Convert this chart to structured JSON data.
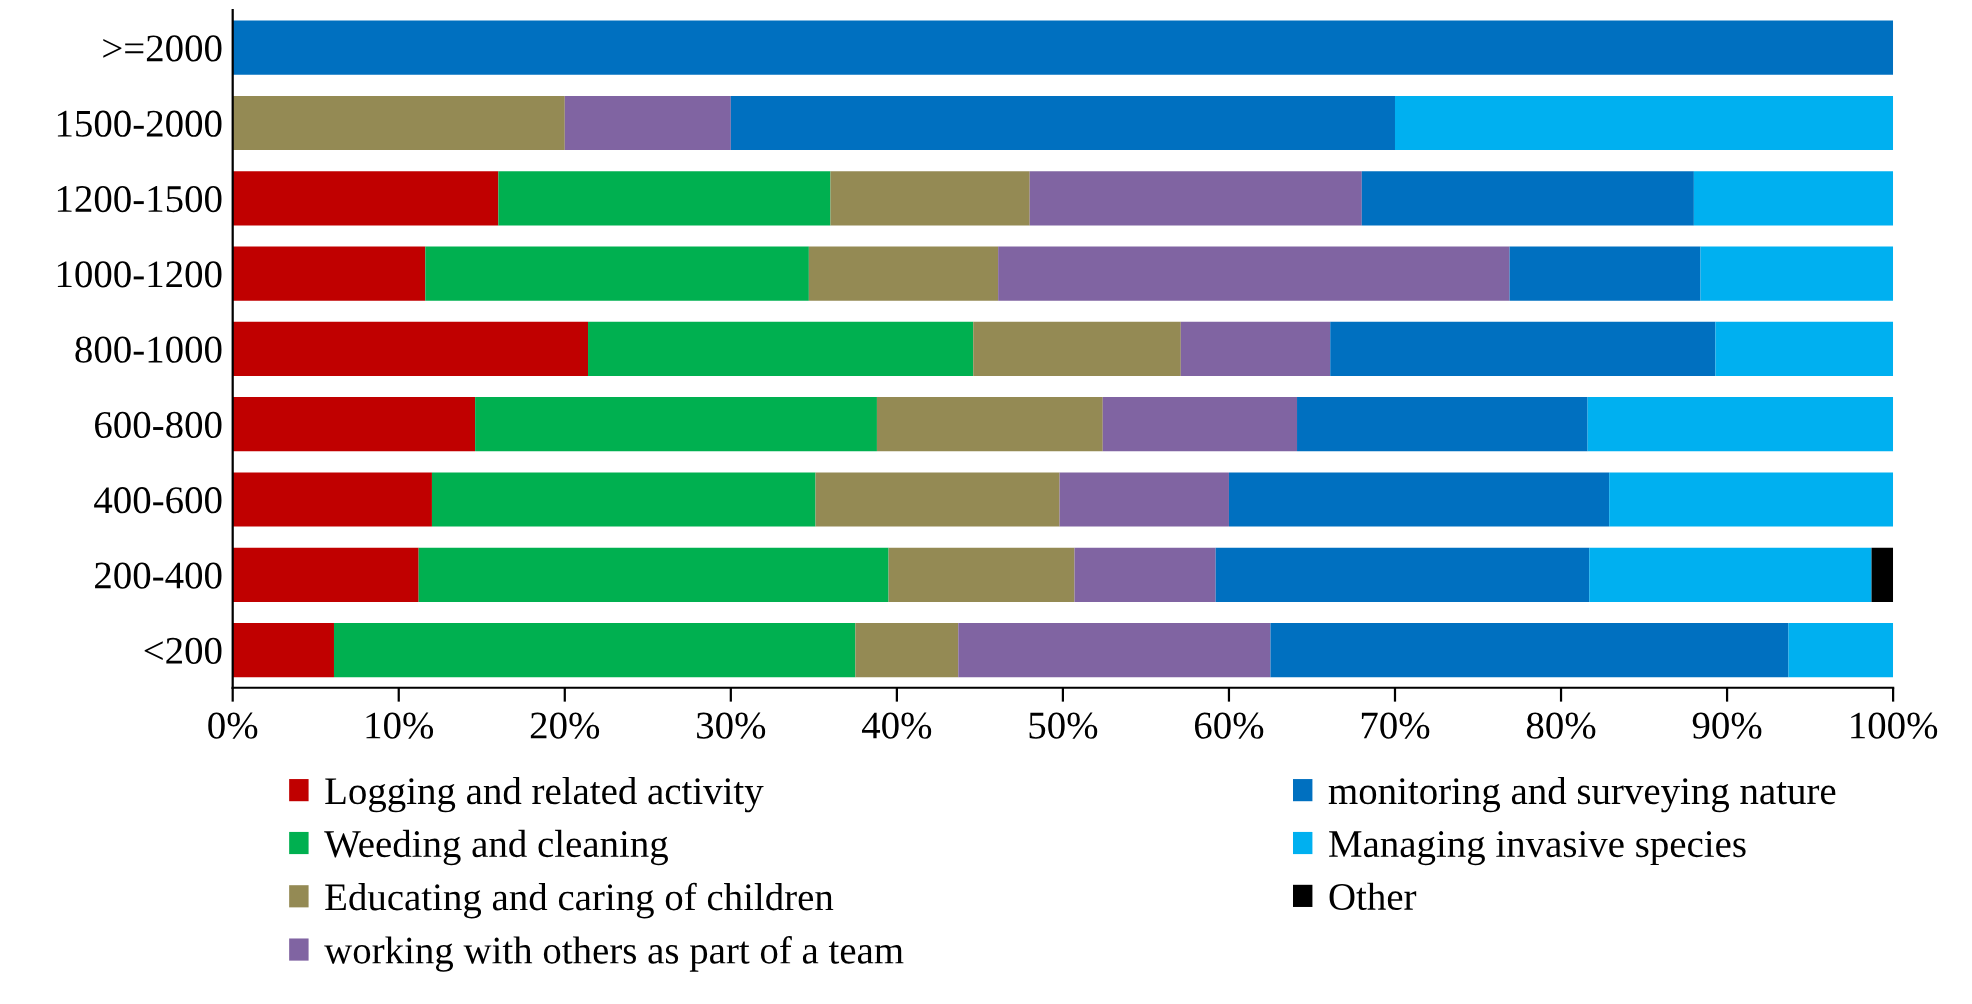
{
  "chart_data": {
    "type": "bar",
    "orientation": "horizontal",
    "stacked": true,
    "categories": [
      ">=2000",
      "1500-2000",
      "1200-1500",
      "1000-1200",
      "800-1000",
      "600-800",
      "400-600",
      "200-400",
      "<200"
    ],
    "series": [
      {
        "name": "Logging and related activity",
        "color": "#c00000",
        "values": [
          0,
          0,
          16,
          11.6,
          21.4,
          14.6,
          12.0,
          11.2,
          6.1
        ]
      },
      {
        "name": "Weeding and cleaning",
        "color": "#00b050",
        "values": [
          0,
          0,
          20,
          23.1,
          23.2,
          24.2,
          23.1,
          28.3,
          31.4
        ]
      },
      {
        "name": "Educating and caring of children",
        "color": "#948a54",
        "values": [
          0,
          20,
          12,
          11.4,
          12.5,
          13.6,
          14.7,
          11.2,
          6.2
        ]
      },
      {
        "name": "working with others as part of a team",
        "color": "#8064a2",
        "values": [
          0,
          10,
          20,
          30.8,
          9.0,
          11.7,
          10.2,
          8.5,
          18.8
        ]
      },
      {
        "name": "monitoring and surveying nature",
        "color": "#0070c0",
        "values": [
          100,
          40,
          20,
          11.5,
          23.2,
          17.5,
          22.9,
          22.5,
          31.2
        ]
      },
      {
        "name": "Managing invasive species",
        "color": "#00b0f0",
        "values": [
          0,
          30,
          12,
          11.6,
          10.7,
          18.4,
          17.1,
          17.0,
          6.3
        ]
      },
      {
        "name": "Other",
        "color": "#000000",
        "values": [
          0,
          0,
          0,
          0,
          0,
          0,
          0,
          1.3,
          0
        ]
      }
    ],
    "xlim": [
      0,
      100
    ],
    "xticks": [
      {
        "value": 0,
        "label": "0%"
      },
      {
        "value": 10,
        "label": "10%"
      },
      {
        "value": 20,
        "label": "20%"
      },
      {
        "value": 30,
        "label": "30%"
      },
      {
        "value": 40,
        "label": "40%"
      },
      {
        "value": 50,
        "label": "50%"
      },
      {
        "value": 60,
        "label": "60%"
      },
      {
        "value": 70,
        "label": "70%"
      },
      {
        "value": 80,
        "label": "80%"
      },
      {
        "value": 90,
        "label": "90%"
      },
      {
        "value": 100,
        "label": "100%"
      }
    ],
    "grid": false,
    "legend": "bottom"
  }
}
